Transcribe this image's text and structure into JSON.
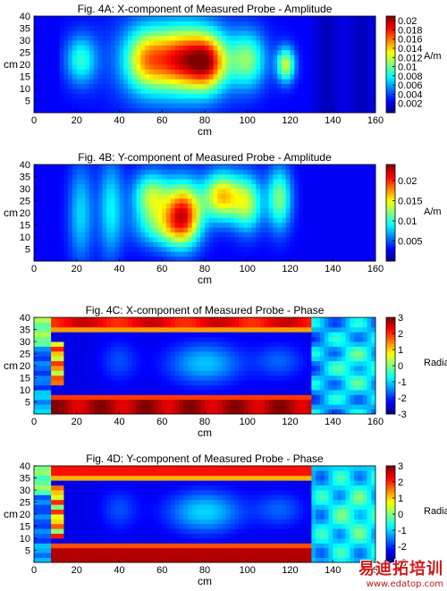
{
  "chart_data": [
    {
      "type": "heatmap",
      "title": "Fig. 4A: X-component of Measured Probe - Amplitude",
      "xlabel": "cm",
      "ylabel": "cm",
      "xlim": [
        0,
        160
      ],
      "ylim": [
        0,
        40
      ],
      "xticks": [
        "0",
        "20",
        "40",
        "60",
        "80",
        "100",
        "120",
        "140",
        "160"
      ],
      "yticks": [
        "5",
        "10",
        "15",
        "20",
        "25",
        "30",
        "35",
        "40"
      ],
      "colorbar": {
        "label": "A/m",
        "min": 0,
        "max": 0.021,
        "ticks": [
          "0.002",
          "0.004",
          "0.006",
          "0.008",
          "0.01",
          "0.012",
          "0.014",
          "0.016",
          "0.018",
          "0.02"
        ]
      },
      "pattern": "xamp"
    },
    {
      "type": "heatmap",
      "title": "Fig. 4B: Y-component of Measured Probe - Amplitude",
      "xlabel": "cm",
      "ylabel": "cm",
      "xlim": [
        0,
        160
      ],
      "ylim": [
        0,
        40
      ],
      "xticks": [
        "0",
        "20",
        "40",
        "60",
        "80",
        "100",
        "120",
        "140",
        "160"
      ],
      "yticks": [
        "5",
        "10",
        "15",
        "20",
        "25",
        "30",
        "35",
        "40"
      ],
      "colorbar": {
        "label": "A/m",
        "min": 0,
        "max": 0.024,
        "ticks": [
          "0.005",
          "0.01",
          "0.015",
          "0.02"
        ]
      },
      "pattern": "yamp"
    },
    {
      "type": "heatmap",
      "title": "Fig. 4C: X-component of Measured Probe - Phase",
      "xlabel": "cm",
      "ylabel": "cm",
      "xlim": [
        0,
        160
      ],
      "ylim": [
        0,
        40
      ],
      "xticks": [
        "0",
        "20",
        "40",
        "60",
        "80",
        "100",
        "120",
        "140",
        "160"
      ],
      "yticks": [
        "5",
        "10",
        "15",
        "20",
        "25",
        "30",
        "35",
        "40"
      ],
      "colorbar": {
        "label": "Radians",
        "min": -3,
        "max": 3,
        "ticks": [
          "-3",
          "-2",
          "-1",
          "0",
          "1",
          "2",
          "3"
        ]
      },
      "pattern": "xphase"
    },
    {
      "type": "heatmap",
      "title": "Fig. 4D: Y-component of Measured Probe - Phase",
      "xlabel": "cm",
      "ylabel": "cm",
      "xlim": [
        0,
        160
      ],
      "ylim": [
        0,
        40
      ],
      "xticks": [
        "0",
        "20",
        "40",
        "60",
        "80",
        "100",
        "120",
        "140",
        "160"
      ],
      "yticks": [
        "5",
        "10",
        "15",
        "20",
        "25",
        "30",
        "35",
        "40"
      ],
      "colorbar": {
        "label": "Radians",
        "min": -3,
        "max": 3,
        "ticks": [
          "-3",
          "-2",
          "-1",
          "0",
          "1",
          "2",
          "3"
        ]
      },
      "pattern": "yphase"
    }
  ],
  "watermark": {
    "text": "易迪拓培训",
    "url": "www.edatop.com"
  }
}
